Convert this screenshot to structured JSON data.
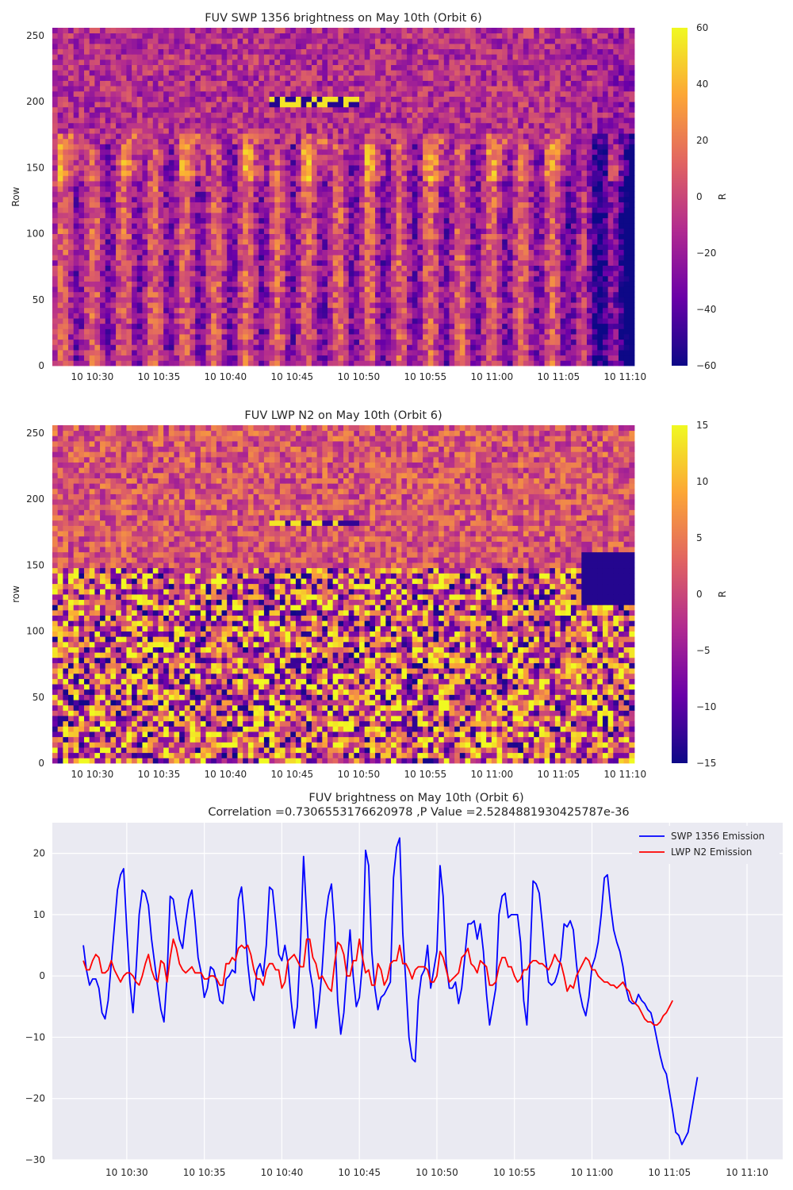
{
  "colors": {
    "swp": "#0000ff",
    "lwp": "#ff0000",
    "plot_bg": "#eaeaf2",
    "grid": "#ffffff",
    "colormap": [
      "#0d0887",
      "#6a00a8",
      "#b12a90",
      "#e16462",
      "#fca636",
      "#f0f921"
    ]
  },
  "chart_data": [
    {
      "type": "heatmap",
      "title": "FUV SWP 1356 brightness on May 10th (Orbit 6)",
      "xlabel": "",
      "ylabel": "Row",
      "colorbar_label": "R",
      "color_range": [
        -60,
        60
      ],
      "colorbar_ticks": [
        "60",
        "40",
        "20",
        "0",
        "−20",
        "−40",
        "−60"
      ],
      "colorbar_tick_values": [
        60,
        40,
        20,
        0,
        -20,
        -40,
        -60
      ],
      "xlim_minutes": [
        27,
        70.7
      ],
      "ylim": [
        0,
        256
      ],
      "xticks": [
        "10 10:30",
        "10 10:35",
        "10 10:40",
        "10 10:45",
        "10 10:50",
        "10 10:55",
        "10 11:00",
        "10 11:05",
        "10 11:10"
      ],
      "xtick_minutes": [
        30,
        35,
        40,
        45,
        50,
        55,
        60,
        65,
        70
      ],
      "yticks": [
        "0",
        "50",
        "100",
        "150",
        "200",
        "250"
      ],
      "ytick_values": [
        0,
        50,
        100,
        150,
        200,
        250
      ]
    },
    {
      "type": "heatmap",
      "title": "FUV LWP N2 on May 10th (Orbit 6)",
      "xlabel": "",
      "ylabel": "row",
      "colorbar_label": "R",
      "color_range": [
        -15,
        15
      ],
      "colorbar_ticks": [
        "15",
        "10",
        "5",
        "0",
        "−5",
        "−10",
        "−15"
      ],
      "colorbar_tick_values": [
        15,
        10,
        5,
        0,
        -5,
        -10,
        -15
      ],
      "xlim_minutes": [
        27,
        70.7
      ],
      "ylim": [
        0,
        256
      ],
      "xticks": [
        "10 10:30",
        "10 10:35",
        "10 10:40",
        "10 10:45",
        "10 10:50",
        "10 10:55",
        "10 11:00",
        "10 11:05",
        "10 11:10"
      ],
      "xtick_minutes": [
        30,
        35,
        40,
        45,
        50,
        55,
        60,
        65,
        70
      ],
      "yticks": [
        "0",
        "50",
        "100",
        "150",
        "200",
        "250"
      ],
      "ytick_values": [
        0,
        50,
        100,
        150,
        200,
        250
      ]
    },
    {
      "type": "line",
      "title": "FUV brightness on May 10th (Orbit 6)",
      "subtitle": "Correlation =0.7306553176620978 ,P Value =2.5284881930425787e-36",
      "xlabel": "",
      "ylabel": "",
      "ylim": [
        -30,
        25
      ],
      "xlim_minutes": [
        25.2,
        72.3
      ],
      "xticks": [
        "10 10:30",
        "10 10:35",
        "10 10:40",
        "10 10:45",
        "10 10:50",
        "10 10:55",
        "10 11:00",
        "10 11:05",
        "10 11:10"
      ],
      "xtick_minutes": [
        30,
        35,
        40,
        45,
        50,
        55,
        60,
        65,
        70
      ],
      "yticks": [
        "20",
        "10",
        "0",
        "−10",
        "−20",
        "−30"
      ],
      "ytick_values": [
        20,
        10,
        0,
        -10,
        -20,
        -30
      ],
      "legend": "top-right",
      "x_minutes_start": 27.2,
      "x_minutes_step": 0.2,
      "series": [
        {
          "name": "SWP 1356 Emission",
          "color": "#0000ff",
          "values": [
            5.0,
            1.0,
            -1.5,
            -0.5,
            -0.5,
            -2.0,
            -6.0,
            -7.0,
            -4.0,
            2.0,
            8.0,
            14.0,
            16.5,
            17.5,
            7.5,
            -1.0,
            -6.0,
            1.0,
            10.0,
            14.0,
            13.5,
            11.5,
            6.0,
            2.0,
            -2.0,
            -5.5,
            -7.5,
            0.0,
            13.0,
            12.5,
            9.0,
            6.0,
            4.5,
            9.0,
            12.5,
            14.0,
            9.0,
            3.0,
            0.5,
            -3.5,
            -2.0,
            1.5,
            1.0,
            -1.0,
            -4.0,
            -4.5,
            -0.5,
            0.0,
            1.0,
            0.5,
            12.5,
            14.5,
            9.0,
            2.0,
            -2.5,
            -4.0,
            1.0,
            2.0,
            0.0,
            5.0,
            14.5,
            14.0,
            9.0,
            3.5,
            2.5,
            5.0,
            2.0,
            -4.0,
            -8.5,
            -5.0,
            5.0,
            19.5,
            10.0,
            1.0,
            -2.0,
            -8.5,
            -4.5,
            1.0,
            9.0,
            13.0,
            15.0,
            8.0,
            -4.0,
            -9.5,
            -6.0,
            1.0,
            7.5,
            0.0,
            -5.0,
            -3.5,
            2.0,
            20.5,
            18.0,
            4.0,
            -2.0,
            -5.5,
            -3.5,
            -3.0,
            -2.0,
            -1.0,
            16.0,
            21.0,
            22.5,
            7.0,
            -1.0,
            -10.0,
            -13.5,
            -14.0,
            -4.0,
            0.0,
            1.0,
            5.0,
            -2.0,
            1.0,
            4.0,
            18.0,
            13.0,
            2.0,
            -2.0,
            -2.0,
            -1.0,
            -4.5,
            -2.0,
            3.0,
            8.5,
            8.5,
            9.0,
            6.0,
            8.5,
            4.0,
            -3.0,
            -8.0,
            -5.0,
            -2.0,
            10.0,
            13.0,
            13.5,
            9.5,
            10.0,
            10.0,
            10.0,
            5.5,
            -4.0,
            -8.0,
            2.5,
            15.5,
            15.0,
            13.5,
            8.5,
            3.0,
            -1.0,
            -1.5,
            -1.0,
            0.5,
            3.0,
            8.5,
            8.0,
            9.0,
            7.5,
            2.0,
            -2.5,
            -5.0,
            -6.5,
            -3.5,
            1.5,
            3.0,
            5.5,
            10.0,
            16.0,
            16.5,
            11.5,
            7.5,
            5.5,
            4.0,
            1.5,
            -2.0,
            -4.0,
            -4.5,
            -4.5,
            -3.0,
            -4.0,
            -4.5,
            -5.5,
            -6.0,
            -8.0,
            -10.5,
            -13.0,
            -15.0,
            -16.0,
            -19.0,
            -22.0,
            -25.5,
            -26.0,
            -27.5,
            -26.5,
            -25.5,
            -22.5,
            -19.5,
            -16.5
          ]
        },
        {
          "name": "LWP N2 Emission",
          "color": "#ff0000",
          "values": [
            2.5,
            1.0,
            1.0,
            2.5,
            3.5,
            3.0,
            0.5,
            0.5,
            1.0,
            2.5,
            1.0,
            0.0,
            -1.0,
            0.0,
            0.5,
            0.5,
            0.0,
            -1.0,
            -1.5,
            0.0,
            2.0,
            3.5,
            1.0,
            -0.5,
            -1.0,
            2.5,
            2.0,
            -1.0,
            3.0,
            6.0,
            4.5,
            2.0,
            1.0,
            0.5,
            1.0,
            1.5,
            0.5,
            0.5,
            0.5,
            -0.5,
            -0.5,
            0.0,
            0.0,
            -0.5,
            -1.5,
            -1.5,
            2.0,
            2.0,
            3.0,
            2.5,
            4.5,
            5.0,
            4.5,
            5.0,
            3.5,
            1.0,
            -0.5,
            -0.5,
            -1.5,
            1.0,
            2.0,
            2.0,
            1.0,
            1.0,
            -2.0,
            -1.0,
            2.5,
            3.0,
            3.5,
            2.5,
            1.5,
            1.5,
            6.0,
            6.0,
            3.0,
            2.0,
            -0.5,
            0.0,
            -1.0,
            -2.0,
            -2.5,
            2.0,
            5.5,
            5.0,
            3.5,
            0.0,
            0.0,
            2.5,
            2.5,
            6.0,
            3.0,
            0.5,
            1.0,
            -1.5,
            -1.5,
            2.0,
            1.0,
            -1.5,
            -0.5,
            2.0,
            2.5,
            2.5,
            5.0,
            2.0,
            2.0,
            1.0,
            -0.5,
            1.0,
            1.5,
            1.5,
            1.5,
            1.0,
            -1.0,
            -1.0,
            0.0,
            4.0,
            3.0,
            1.0,
            -1.0,
            -0.5,
            0.0,
            0.5,
            3.0,
            3.5,
            4.5,
            2.0,
            1.5,
            0.5,
            2.5,
            2.0,
            1.5,
            -1.5,
            -1.5,
            -1.0,
            1.5,
            3.0,
            3.0,
            1.5,
            1.5,
            0.0,
            -1.0,
            -0.5,
            1.0,
            1.0,
            2.0,
            2.5,
            2.5,
            2.0,
            2.0,
            1.5,
            1.0,
            2.0,
            3.5,
            2.5,
            2.0,
            0.0,
            -2.5,
            -1.5,
            -2.0,
            0.0,
            1.0,
            2.0,
            3.0,
            2.5,
            1.0,
            1.0,
            0.0,
            -0.5,
            -1.0,
            -1.0,
            -1.5,
            -1.5,
            -2.0,
            -1.5,
            -1.0,
            -2.0,
            -2.5,
            -4.0,
            -4.5,
            -5.0,
            -6.0,
            -7.0,
            -7.5,
            -7.5,
            -8.0,
            -8.0,
            -7.5,
            -6.5,
            -6.0,
            -5.0,
            -4.0
          ]
        }
      ]
    }
  ]
}
